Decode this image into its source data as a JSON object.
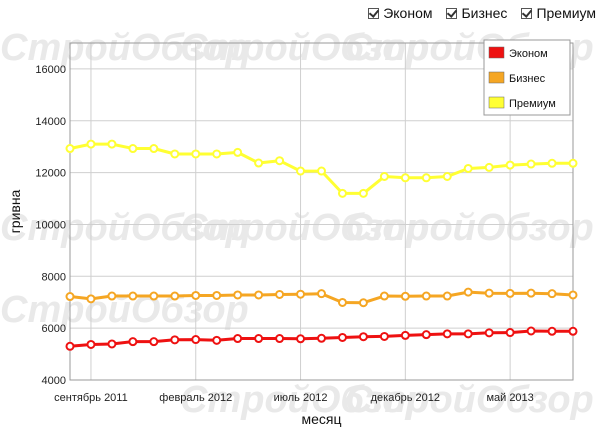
{
  "filters": [
    {
      "label": "Эконом",
      "checked": true
    },
    {
      "label": "Бизнес",
      "checked": true
    },
    {
      "label": "Премиум",
      "checked": true
    }
  ],
  "watermark": "СтройОбзор",
  "chart_data": {
    "type": "line",
    "xlabel": "месяц",
    "ylabel": "гривна",
    "ylim": [
      4000,
      17000
    ],
    "yticks": [
      4000,
      6000,
      8000,
      10000,
      12000,
      14000,
      16000
    ],
    "grid": true,
    "legend_position": "top-right",
    "x": [
      "2011-08",
      "2011-09",
      "2011-10",
      "2011-11",
      "2011-12",
      "2012-01",
      "2012-02",
      "2012-03",
      "2012-04",
      "2012-05",
      "2012-06",
      "2012-07",
      "2012-08",
      "2012-09",
      "2012-10",
      "2012-11",
      "2012-12",
      "2013-01",
      "2013-02",
      "2013-03",
      "2013-04",
      "2013-05",
      "2013-06",
      "2013-07",
      "2013-08"
    ],
    "xtick_labels": [
      {
        "month": "2011-09",
        "label": "сентябрь 2011"
      },
      {
        "month": "2012-02",
        "label": "февраль 2012"
      },
      {
        "month": "2012-07",
        "label": "июль 2012"
      },
      {
        "month": "2012-12",
        "label": "декабрь 2012"
      },
      {
        "month": "2013-05",
        "label": "май 2013"
      }
    ],
    "series": [
      {
        "name": "Эконом",
        "color": "#ee1111",
        "values": [
          5300,
          5370,
          5390,
          5480,
          5480,
          5550,
          5560,
          5530,
          5600,
          5600,
          5600,
          5590,
          5610,
          5640,
          5670,
          5680,
          5720,
          5750,
          5780,
          5780,
          5820,
          5830,
          5890,
          5880,
          5880
        ]
      },
      {
        "name": "Бизнес",
        "color": "#f5a623",
        "values": [
          7220,
          7130,
          7240,
          7240,
          7240,
          7240,
          7260,
          7260,
          7280,
          7280,
          7300,
          7310,
          7330,
          6990,
          6980,
          7240,
          7230,
          7240,
          7240,
          7390,
          7350,
          7340,
          7350,
          7330,
          7280
        ]
      },
      {
        "name": "Премиум",
        "color": "#ffff33",
        "values": [
          12930,
          13100,
          13100,
          12930,
          12930,
          12720,
          12720,
          12720,
          12780,
          12370,
          12460,
          12060,
          12060,
          11200,
          11200,
          11850,
          11800,
          11800,
          11850,
          12160,
          12200,
          12290,
          12330,
          12360,
          12360
        ]
      }
    ]
  }
}
